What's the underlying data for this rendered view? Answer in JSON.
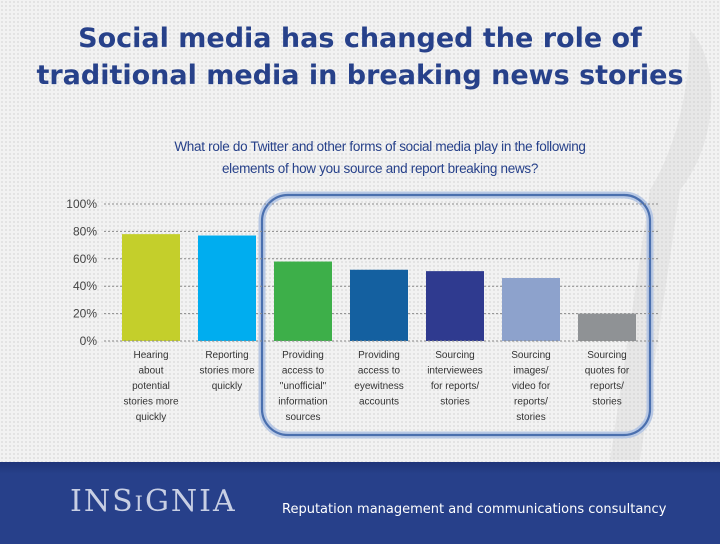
{
  "slide": {
    "title_line1": "Social media has changed the role of",
    "title_line2": "traditional media in breaking news stories",
    "subtitle_line1": "What role do Twitter and other forms of social media play in the following",
    "subtitle_line2": "elements of how you source and report breaking news?"
  },
  "footer": {
    "logo_text": "INSiGNIA",
    "tagline": "Reputation management and communications consultancy"
  },
  "chart_data": {
    "type": "bar",
    "title": "What role do Twitter and other forms of social media play in the following elements of how you source and report breaking news?",
    "categories": [
      [
        "Hearing",
        "about",
        "potential",
        "stories more",
        "quickly"
      ],
      [
        "Reporting",
        "stories more",
        "quickly"
      ],
      [
        "Providing",
        "access to",
        "\"unofficial\"",
        "information",
        "sources"
      ],
      [
        "Providing",
        "access to",
        "eyewitness",
        "accounts"
      ],
      [
        "Sourcing",
        "interviewees",
        "for reports/",
        "stories"
      ],
      [
        "Sourcing",
        "images/",
        "video for",
        "reports/",
        "stories"
      ],
      [
        "Sourcing",
        "quotes for",
        "reports/",
        "stories"
      ]
    ],
    "values": [
      78,
      77,
      58,
      52,
      51,
      46,
      20
    ],
    "bar_colors": [
      "#c4cf2b",
      "#00adef",
      "#3daf49",
      "#1460a0",
      "#2f3a8f",
      "#8da2cc",
      "#8f9295"
    ],
    "yticks": [
      "0%",
      "20%",
      "40%",
      "60%",
      "80%",
      "100%"
    ],
    "ylim": [
      0,
      100
    ],
    "grid": true,
    "highlight_categories": [
      2,
      3,
      4,
      5,
      6
    ]
  }
}
